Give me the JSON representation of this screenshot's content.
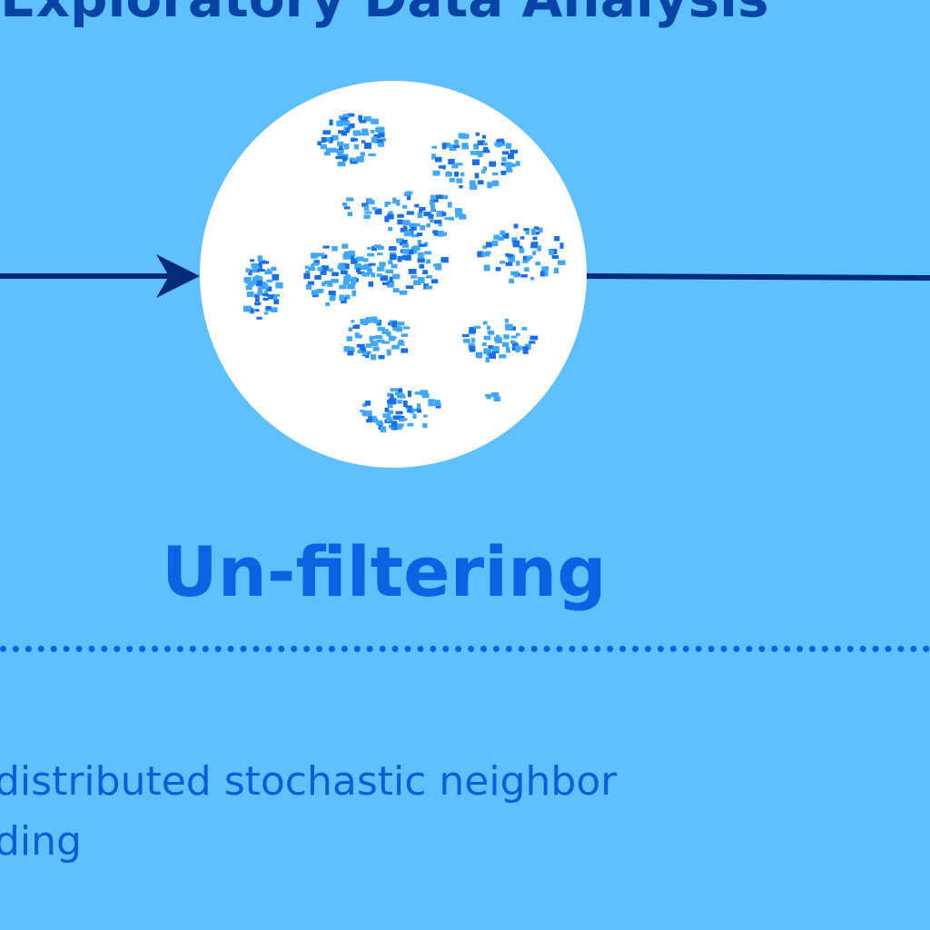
{
  "section_title": "Exploratory Data Analysis",
  "step": {
    "label": "Un-filtering",
    "icon": "tsne-cluster-plot-icon"
  },
  "description": {
    "lines": [
      "distributed stochastic neighbor",
      "ding"
    ]
  },
  "colors": {
    "background": "#60c0fd",
    "title": "#0644a6",
    "step_label": "#0a63e2",
    "arrow": "#052a78",
    "circle": "#ffffff",
    "dots_light": "#42a8f5",
    "dots_dark": "#1a6fe6"
  }
}
